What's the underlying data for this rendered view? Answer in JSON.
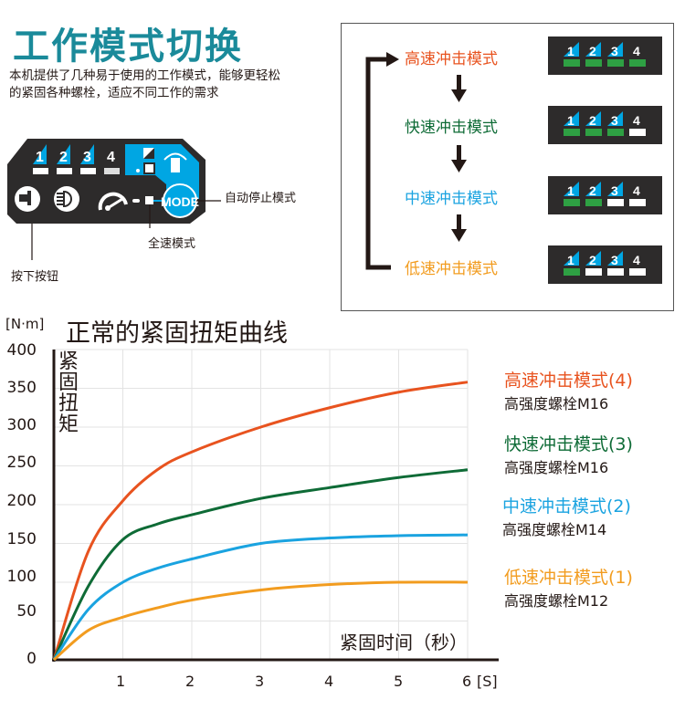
{
  "header": {
    "title": "工作模式切换",
    "description_line1": "本机提供了几种易于使用的工作模式，能够更轻松",
    "description_line2": "的紧固各种螺栓，适应不同工作的需求"
  },
  "control_panel": {
    "numbers": [
      "1",
      "2",
      "3",
      "4"
    ],
    "mode_button_label": "MODE",
    "callouts": {
      "auto_stop": "自动停止模式",
      "full_speed": "全速模式",
      "press_button": "按下按钮"
    },
    "colors": {
      "panel": "#2d2b2b",
      "accent": "#00a6e3"
    }
  },
  "mode_cycle": {
    "modes": [
      {
        "label": "高速冲击模式",
        "color": "#e8531f",
        "leds_on": 4
      },
      {
        "label": "快速冲击模式",
        "color": "#0e6b36",
        "leds_on": 3
      },
      {
        "label": "中速冲击模式",
        "color": "#1aa3e0",
        "leds_on": 2
      },
      {
        "label": "低速冲击模式",
        "color": "#f29c1f",
        "leds_on": 1
      }
    ],
    "led_numbers": [
      "1",
      "2",
      "3",
      "4"
    ],
    "led_on_color": "#2ea043",
    "led_off_color": "#ffffff"
  },
  "chart": {
    "unit_label": "[N·m]",
    "title": "正常的紧固扭矩曲线",
    "y_axis_label": "紧固扭矩",
    "x_axis_label": "紧固时间（秒）",
    "x_unit_label": "[S]",
    "y_ticks": [
      "400",
      "350",
      "300",
      "250",
      "200",
      "150",
      "100",
      "50",
      "0"
    ],
    "x_ticks": [
      "1",
      "2",
      "3",
      "4",
      "5",
      "6"
    ],
    "legend": [
      {
        "mode": "高速冲击模式(4)",
        "bolt": "高强度螺栓M16",
        "color": "#e8531f"
      },
      {
        "mode": "快速冲击模式(3)",
        "bolt": "高强度螺栓M16",
        "color": "#0e6b36"
      },
      {
        "mode": "中速冲击模式(2)",
        "bolt": "高强度螺栓M14",
        "color": "#1aa3e0"
      },
      {
        "mode": "低速冲击模式(1)",
        "bolt": "高强度螺栓M12",
        "color": "#f29c1f"
      }
    ]
  },
  "chart_data": {
    "type": "line",
    "title": "正常的紧固扭矩曲线",
    "xlabel": "紧固时间（秒）[S]",
    "ylabel": "紧固扭矩 [N·m]",
    "xlim": [
      0,
      6
    ],
    "ylim": [
      0,
      400
    ],
    "grid": true,
    "legend_position": "right",
    "x": [
      0,
      0.5,
      1,
      1.5,
      2,
      3,
      4,
      5,
      6
    ],
    "series": [
      {
        "name": "高速冲击模式(4) 高强度螺栓M16",
        "color": "#e8531f",
        "values": [
          0,
          140,
          205,
          245,
          268,
          300,
          325,
          345,
          358
        ]
      },
      {
        "name": "快速冲击模式(3) 高强度螺栓M16",
        "color": "#0e6b36",
        "values": [
          0,
          95,
          155,
          175,
          187,
          208,
          222,
          235,
          245
        ]
      },
      {
        "name": "中速冲击模式(2) 高强度螺栓M14",
        "color": "#1aa3e0",
        "values": [
          0,
          65,
          100,
          118,
          130,
          150,
          157,
          160,
          161
        ]
      },
      {
        "name": "低速冲击模式(1) 高强度螺栓M12",
        "color": "#f29c1f",
        "values": [
          0,
          38,
          55,
          67,
          77,
          90,
          97,
          100,
          100
        ]
      }
    ]
  }
}
